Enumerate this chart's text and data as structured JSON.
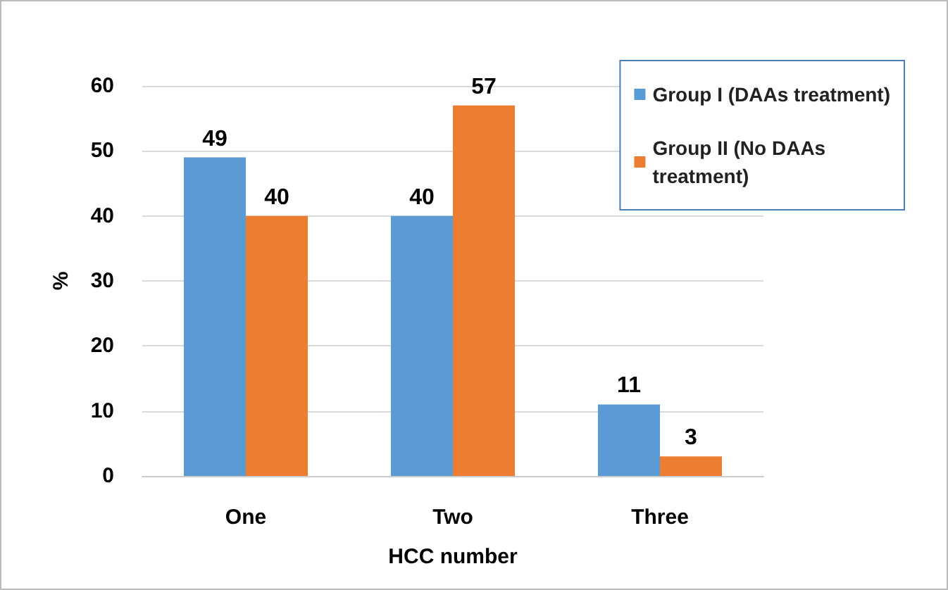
{
  "chart_data": {
    "type": "bar",
    "xlabel": "HCC number",
    "ylabel": "%",
    "categories": [
      "One",
      "Two",
      "Three"
    ],
    "series": [
      {
        "name": "Group I (DAAs treatment)",
        "color": "#5b9bd5",
        "values": [
          49,
          40,
          11
        ]
      },
      {
        "name": "Group II (No DAAs treatment)",
        "color": "#ed7d31",
        "values": [
          40,
          57,
          3
        ]
      }
    ],
    "ylim": [
      0,
      60
    ],
    "yticks": [
      0,
      10,
      20,
      30,
      40,
      50,
      60
    ],
    "grid": "y",
    "legend": "top right",
    "data_labels": true
  }
}
